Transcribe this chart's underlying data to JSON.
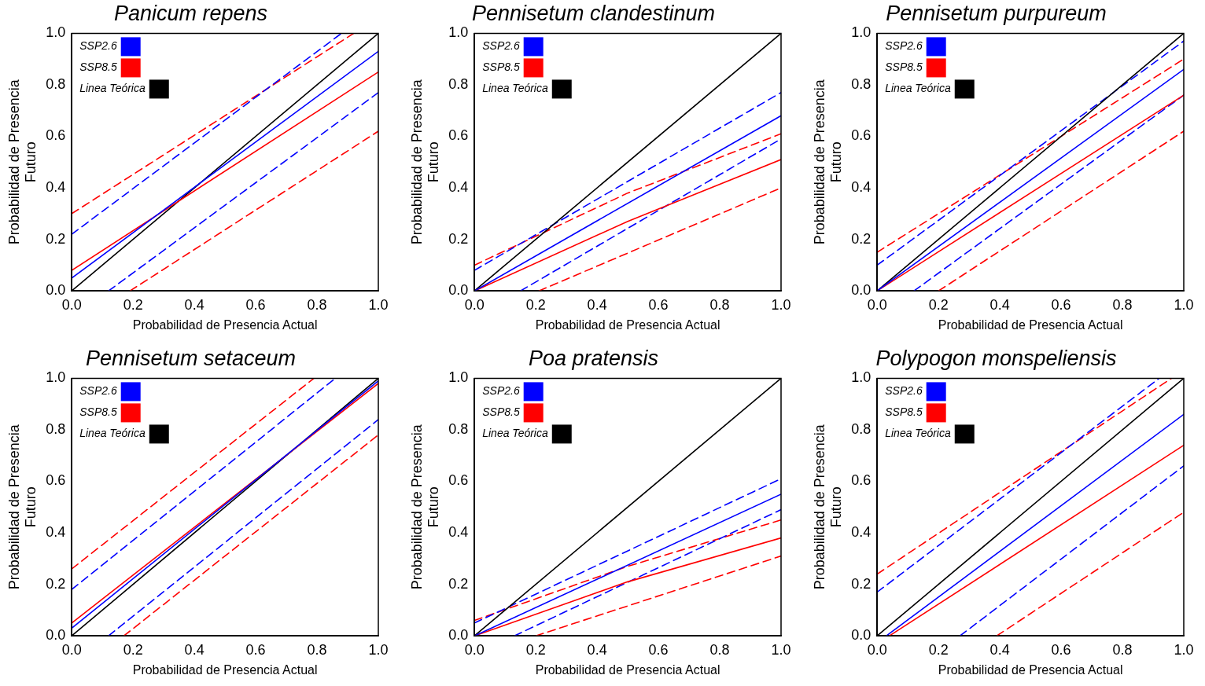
{
  "chart_data": [
    {
      "type": "line",
      "title": "Panicum repens",
      "xlabel": "Probabilidad de Presencia Actual",
      "ylabel": "Probabilidad de Presencia\nFuturo",
      "xlim": [
        0,
        1
      ],
      "ylim": [
        0,
        1
      ],
      "xticks": [
        {
          "value": 0,
          "label": "0.0"
        },
        {
          "value": 0.2,
          "label": "0.2"
        },
        {
          "value": 0.4,
          "label": "0.4"
        },
        {
          "value": 0.6,
          "label": "0.6"
        },
        {
          "value": 0.8,
          "label": "0.8"
        },
        {
          "value": 1,
          "label": "1.0"
        }
      ],
      "yticks": [
        {
          "value": 0,
          "label": "0.0"
        },
        {
          "value": 0.2,
          "label": "0.2"
        },
        {
          "value": 0.4,
          "label": "0.4"
        },
        {
          "value": 0.6,
          "label": "0.6"
        },
        {
          "value": 0.8,
          "label": "0.8"
        },
        {
          "value": 1,
          "label": "1.0"
        }
      ],
      "grid": false,
      "legend": "top left",
      "marker": "none",
      "line_style": "solid",
      "series": [
        {
          "name": "SSP2.6",
          "color": "#0000ff",
          "x": [
            0,
            1
          ],
          "values": [
            0.05,
            0.93
          ]
        },
        {
          "name": "SSP8.5",
          "color": "#ff0000",
          "x": [
            0,
            1
          ],
          "values": [
            0.08,
            0.85
          ]
        },
        {
          "name": "Linea Teórica",
          "color": "#000000",
          "x": [
            0,
            1
          ],
          "values": [
            0,
            1
          ]
        },
        {
          "color": "#0000ff",
          "line_style": "dashed",
          "x": [
            0,
            0.88
          ],
          "values": [
            0.22,
            1
          ]
        },
        {
          "color": "#0000ff",
          "line_style": "dashed",
          "x": [
            0.12,
            1
          ],
          "values": [
            0,
            0.77
          ]
        },
        {
          "color": "#ff0000",
          "line_style": "dashed",
          "x": [
            0,
            0.92
          ],
          "values": [
            0.3,
            1
          ]
        },
        {
          "color": "#ff0000",
          "line_style": "dashed",
          "x": [
            0.19,
            1
          ],
          "values": [
            0,
            0.62
          ]
        }
      ]
    },
    {
      "type": "line",
      "title": "Pennisetum clandestinum",
      "xlabel": "Probabilidad de Presencia Actual",
      "ylabel": "Probabilidad de Presencia\nFuturo",
      "xlim": [
        0,
        1
      ],
      "ylim": [
        0,
        1
      ],
      "xticks": [
        {
          "value": 0,
          "label": "0.0"
        },
        {
          "value": 0.2,
          "label": "0.2"
        },
        {
          "value": 0.4,
          "label": "0.4"
        },
        {
          "value": 0.6,
          "label": "0.6"
        },
        {
          "value": 0.8,
          "label": "0.8"
        },
        {
          "value": 1,
          "label": "1.0"
        }
      ],
      "yticks": [
        {
          "value": 0,
          "label": "0.0"
        },
        {
          "value": 0.2,
          "label": "0.2"
        },
        {
          "value": 0.4,
          "label": "0.4"
        },
        {
          "value": 0.6,
          "label": "0.6"
        },
        {
          "value": 0.8,
          "label": "0.8"
        },
        {
          "value": 1,
          "label": "1.0"
        }
      ],
      "grid": false,
      "legend": "top left",
      "marker": "none",
      "line_style": "solid",
      "series": [
        {
          "name": "SSP2.6",
          "color": "#0000ff",
          "x": [
            0,
            1
          ],
          "values": [
            0,
            0.68
          ]
        },
        {
          "name": "SSP8.5",
          "color": "#ff0000",
          "x": [
            0,
            0.5,
            1
          ],
          "values": [
            0,
            0.27,
            0.51
          ]
        },
        {
          "name": "Linea Teórica",
          "color": "#000000",
          "x": [
            0,
            1
          ],
          "values": [
            0,
            1
          ]
        },
        {
          "color": "#0000ff",
          "line_style": "dashed",
          "x": [
            0,
            1
          ],
          "values": [
            0.08,
            0.77
          ]
        },
        {
          "color": "#0000ff",
          "line_style": "dashed",
          "x": [
            0.15,
            1
          ],
          "values": [
            0,
            0.59
          ]
        },
        {
          "color": "#ff0000",
          "line_style": "dashed",
          "x": [
            0,
            0.5,
            1
          ],
          "values": [
            0.1,
            0.38,
            0.61
          ]
        },
        {
          "color": "#ff0000",
          "line_style": "dashed",
          "x": [
            0.21,
            1
          ],
          "values": [
            0,
            0.4
          ]
        }
      ]
    },
    {
      "type": "line",
      "title": "Pennisetum purpureum",
      "xlabel": "Probabilidad de Presencia Actual",
      "ylabel": "Probabilidad de Presencia\nFuturo",
      "xlim": [
        0,
        1
      ],
      "ylim": [
        0,
        1
      ],
      "xticks": [
        {
          "value": 0,
          "label": "0.0"
        },
        {
          "value": 0.2,
          "label": "0.2"
        },
        {
          "value": 0.4,
          "label": "0.4"
        },
        {
          "value": 0.6,
          "label": "0.6"
        },
        {
          "value": 0.8,
          "label": "0.8"
        },
        {
          "value": 1,
          "label": "1.0"
        }
      ],
      "yticks": [
        {
          "value": 0,
          "label": "0.0"
        },
        {
          "value": 0.2,
          "label": "0.2"
        },
        {
          "value": 0.4,
          "label": "0.4"
        },
        {
          "value": 0.6,
          "label": "0.6"
        },
        {
          "value": 0.8,
          "label": "0.8"
        },
        {
          "value": 1,
          "label": "1.0"
        }
      ],
      "grid": false,
      "legend": "top left",
      "marker": "none",
      "line_style": "solid",
      "series": [
        {
          "name": "SSP2.6",
          "color": "#0000ff",
          "x": [
            0,
            1
          ],
          "values": [
            0,
            0.86
          ]
        },
        {
          "name": "SSP8.5",
          "color": "#ff0000",
          "x": [
            0,
            1
          ],
          "values": [
            0,
            0.76
          ]
        },
        {
          "name": "Linea Teórica",
          "color": "#000000",
          "x": [
            0,
            1
          ],
          "values": [
            0,
            1
          ]
        },
        {
          "color": "#0000ff",
          "line_style": "dashed",
          "x": [
            0,
            1
          ],
          "values": [
            0.1,
            0.97
          ]
        },
        {
          "color": "#0000ff",
          "line_style": "dashed",
          "x": [
            0.12,
            1
          ],
          "values": [
            0,
            0.76
          ]
        },
        {
          "color": "#ff0000",
          "line_style": "dashed",
          "x": [
            0,
            1
          ],
          "values": [
            0.15,
            0.9
          ]
        },
        {
          "color": "#ff0000",
          "line_style": "dashed",
          "x": [
            0.2,
            1
          ],
          "values": [
            0,
            0.62
          ]
        }
      ]
    },
    {
      "type": "line",
      "title": "Pennisetum setaceum",
      "xlabel": "Probabilidad de Presencia Actual",
      "ylabel": "Probabilidad de Presencia\nFuturo",
      "xlim": [
        0,
        1
      ],
      "ylim": [
        0,
        1
      ],
      "xticks": [
        {
          "value": 0,
          "label": "0.0"
        },
        {
          "value": 0.2,
          "label": "0.2"
        },
        {
          "value": 0.4,
          "label": "0.4"
        },
        {
          "value": 0.6,
          "label": "0.6"
        },
        {
          "value": 0.8,
          "label": "0.8"
        },
        {
          "value": 1,
          "label": "1.0"
        }
      ],
      "yticks": [
        {
          "value": 0,
          "label": "0.0"
        },
        {
          "value": 0.2,
          "label": "0.2"
        },
        {
          "value": 0.4,
          "label": "0.4"
        },
        {
          "value": 0.6,
          "label": "0.6"
        },
        {
          "value": 0.8,
          "label": "0.8"
        },
        {
          "value": 1,
          "label": "1.0"
        }
      ],
      "grid": false,
      "legend": "top left",
      "marker": "none",
      "line_style": "solid",
      "series": [
        {
          "name": "SSP2.6",
          "color": "#0000ff",
          "x": [
            0,
            1
          ],
          "values": [
            0.03,
            0.99
          ]
        },
        {
          "name": "SSP8.5",
          "color": "#ff0000",
          "x": [
            0,
            1
          ],
          "values": [
            0.05,
            0.98
          ]
        },
        {
          "name": "Linea Teórica",
          "color": "#000000",
          "x": [
            0,
            1
          ],
          "values": [
            0,
            1
          ]
        },
        {
          "color": "#0000ff",
          "line_style": "dashed",
          "x": [
            0,
            0.86
          ],
          "values": [
            0.18,
            1
          ]
        },
        {
          "color": "#0000ff",
          "line_style": "dashed",
          "x": [
            0.12,
            1
          ],
          "values": [
            0,
            0.84
          ]
        },
        {
          "color": "#ff0000",
          "line_style": "dashed",
          "x": [
            0,
            0.79
          ],
          "values": [
            0.26,
            1
          ]
        },
        {
          "color": "#ff0000",
          "line_style": "dashed",
          "x": [
            0.17,
            1
          ],
          "values": [
            0,
            0.78
          ]
        }
      ]
    },
    {
      "type": "line",
      "title": "Poa pratensis",
      "xlabel": "Probabilidad de Presencia Actual",
      "ylabel": "Probabilidad de Presencia\nFuturo",
      "xlim": [
        0,
        1
      ],
      "ylim": [
        0,
        1
      ],
      "xticks": [
        {
          "value": 0,
          "label": "0.0"
        },
        {
          "value": 0.2,
          "label": "0.2"
        },
        {
          "value": 0.4,
          "label": "0.4"
        },
        {
          "value": 0.6,
          "label": "0.6"
        },
        {
          "value": 0.8,
          "label": "0.8"
        },
        {
          "value": 1,
          "label": "1.0"
        }
      ],
      "yticks": [
        {
          "value": 0,
          "label": "0.0"
        },
        {
          "value": 0.2,
          "label": "0.2"
        },
        {
          "value": 0.4,
          "label": "0.4"
        },
        {
          "value": 0.6,
          "label": "0.6"
        },
        {
          "value": 0.8,
          "label": "0.8"
        },
        {
          "value": 1,
          "label": "1.0"
        }
      ],
      "grid": false,
      "legend": "top left",
      "marker": "none",
      "line_style": "solid",
      "series": [
        {
          "name": "SSP2.6",
          "color": "#0000ff",
          "x": [
            0,
            1
          ],
          "values": [
            0,
            0.55
          ]
        },
        {
          "name": "SSP8.5",
          "color": "#ff0000",
          "x": [
            0,
            0.5,
            1
          ],
          "values": [
            0,
            0.21,
            0.38
          ]
        },
        {
          "name": "Linea Teórica",
          "color": "#000000",
          "x": [
            0,
            1
          ],
          "values": [
            0,
            1
          ]
        },
        {
          "color": "#0000ff",
          "line_style": "dashed",
          "x": [
            0,
            1
          ],
          "values": [
            0.05,
            0.61
          ]
        },
        {
          "color": "#0000ff",
          "line_style": "dashed",
          "x": [
            0.13,
            1
          ],
          "values": [
            0,
            0.49
          ]
        },
        {
          "color": "#ff0000",
          "line_style": "dashed",
          "x": [
            0,
            0.5,
            1
          ],
          "values": [
            0.06,
            0.27,
            0.45
          ]
        },
        {
          "color": "#ff0000",
          "line_style": "dashed",
          "x": [
            0.2,
            1
          ],
          "values": [
            0,
            0.31
          ]
        }
      ]
    },
    {
      "type": "line",
      "title": "Polypogon monspeliensis",
      "xlabel": "Probabilidad de Presencia Actual",
      "ylabel": "Probabilidad de Presencia\nFuturo",
      "xlim": [
        0,
        1
      ],
      "ylim": [
        0,
        1
      ],
      "xticks": [
        {
          "value": 0,
          "label": "0.0"
        },
        {
          "value": 0.2,
          "label": "0.2"
        },
        {
          "value": 0.4,
          "label": "0.4"
        },
        {
          "value": 0.6,
          "label": "0.6"
        },
        {
          "value": 0.8,
          "label": "0.8"
        },
        {
          "value": 1,
          "label": "1.0"
        }
      ],
      "yticks": [
        {
          "value": 0,
          "label": "0.0"
        },
        {
          "value": 0.2,
          "label": "0.2"
        },
        {
          "value": 0.4,
          "label": "0.4"
        },
        {
          "value": 0.6,
          "label": "0.6"
        },
        {
          "value": 0.8,
          "label": "0.8"
        },
        {
          "value": 1,
          "label": "1.0"
        }
      ],
      "grid": false,
      "legend": "top left",
      "marker": "none",
      "line_style": "solid",
      "series": [
        {
          "name": "SSP2.6",
          "color": "#0000ff",
          "x": [
            0.03,
            1
          ],
          "values": [
            0,
            0.86
          ]
        },
        {
          "name": "SSP8.5",
          "color": "#ff0000",
          "x": [
            0.04,
            1
          ],
          "values": [
            0,
            0.74
          ]
        },
        {
          "name": "Linea Teórica",
          "color": "#000000",
          "x": [
            0,
            1
          ],
          "values": [
            0,
            1
          ]
        },
        {
          "color": "#0000ff",
          "line_style": "dashed",
          "x": [
            0,
            0.92
          ],
          "values": [
            0.17,
            1
          ]
        },
        {
          "color": "#0000ff",
          "line_style": "dashed",
          "x": [
            0.27,
            1
          ],
          "values": [
            0,
            0.66
          ]
        },
        {
          "color": "#ff0000",
          "line_style": "dashed",
          "x": [
            0,
            0.96
          ],
          "values": [
            0.24,
            1
          ]
        },
        {
          "color": "#ff0000",
          "line_style": "dashed",
          "x": [
            0.39,
            1
          ],
          "values": [
            0,
            0.48
          ]
        }
      ]
    }
  ]
}
